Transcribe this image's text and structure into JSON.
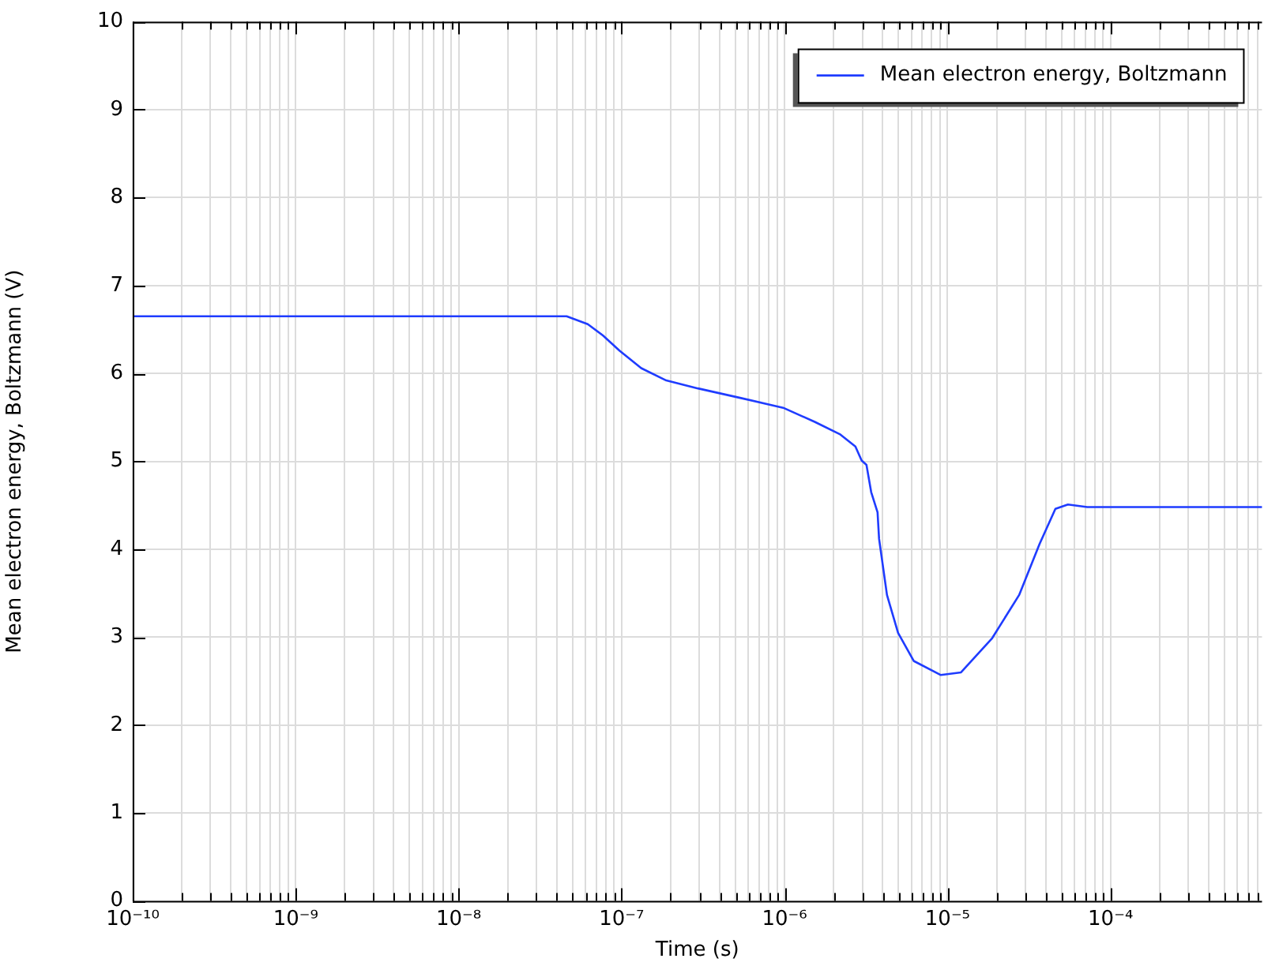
{
  "chart_data": {
    "type": "line",
    "xlabel": "Time (s)",
    "ylabel": "Mean electron energy, Boltzmann (V)",
    "log": "x",
    "grid": true,
    "legend": "top right",
    "marker": "none",
    "line_style": "solid",
    "xlim": [
      1e-10,
      0.00085
    ],
    "ylim": [
      0,
      10
    ],
    "xticks": [
      {
        "value": 1e-10,
        "label": "10⁻¹⁰"
      },
      {
        "value": 2e-10,
        "label": null
      },
      {
        "value": 3e-10,
        "label": null
      },
      {
        "value": 4e-10,
        "label": null
      },
      {
        "value": 5e-10,
        "label": null
      },
      {
        "value": 6e-10,
        "label": null
      },
      {
        "value": 7e-10,
        "label": null
      },
      {
        "value": 8e-10,
        "label": null
      },
      {
        "value": 9e-10,
        "label": null
      },
      {
        "value": 1e-09,
        "label": "10⁻⁹"
      },
      {
        "value": 2e-09,
        "label": null
      },
      {
        "value": 3e-09,
        "label": null
      },
      {
        "value": 4e-09,
        "label": null
      },
      {
        "value": 5e-09,
        "label": null
      },
      {
        "value": 6e-09,
        "label": null
      },
      {
        "value": 7e-09,
        "label": null
      },
      {
        "value": 8e-09,
        "label": null
      },
      {
        "value": 9e-09,
        "label": null
      },
      {
        "value": 1e-08,
        "label": "10⁻⁸"
      },
      {
        "value": 2e-08,
        "label": null
      },
      {
        "value": 3e-08,
        "label": null
      },
      {
        "value": 4e-08,
        "label": null
      },
      {
        "value": 5e-08,
        "label": null
      },
      {
        "value": 6e-08,
        "label": null
      },
      {
        "value": 7e-08,
        "label": null
      },
      {
        "value": 8e-08,
        "label": null
      },
      {
        "value": 9e-08,
        "label": null
      },
      {
        "value": 1e-07,
        "label": "10⁻⁷"
      },
      {
        "value": 2e-07,
        "label": null
      },
      {
        "value": 3e-07,
        "label": null
      },
      {
        "value": 4e-07,
        "label": null
      },
      {
        "value": 5e-07,
        "label": null
      },
      {
        "value": 6e-07,
        "label": null
      },
      {
        "value": 7e-07,
        "label": null
      },
      {
        "value": 8e-07,
        "label": null
      },
      {
        "value": 9e-07,
        "label": null
      },
      {
        "value": 1e-06,
        "label": "10⁻⁶"
      },
      {
        "value": 2e-06,
        "label": null
      },
      {
        "value": 3e-06,
        "label": null
      },
      {
        "value": 4e-06,
        "label": null
      },
      {
        "value": 5e-06,
        "label": null
      },
      {
        "value": 6e-06,
        "label": null
      },
      {
        "value": 7e-06,
        "label": null
      },
      {
        "value": 8e-06,
        "label": null
      },
      {
        "value": 9e-06,
        "label": null
      },
      {
        "value": 1e-05,
        "label": "10⁻⁵"
      },
      {
        "value": 2e-05,
        "label": null
      },
      {
        "value": 3e-05,
        "label": null
      },
      {
        "value": 4e-05,
        "label": null
      },
      {
        "value": 5e-05,
        "label": null
      },
      {
        "value": 6e-05,
        "label": null
      },
      {
        "value": 7e-05,
        "label": null
      },
      {
        "value": 8e-05,
        "label": null
      },
      {
        "value": 9e-05,
        "label": null
      },
      {
        "value": 0.0001,
        "label": "10⁻⁴"
      },
      {
        "value": 0.0002,
        "label": null
      },
      {
        "value": 0.0003,
        "label": null
      },
      {
        "value": 0.0004,
        "label": null
      },
      {
        "value": 0.0005,
        "label": null
      },
      {
        "value": 0.0006,
        "label": null
      },
      {
        "value": 0.0007,
        "label": null
      },
      {
        "value": 0.0008,
        "label": null
      }
    ],
    "yticks": [
      0,
      1,
      2,
      3,
      4,
      5,
      6,
      7,
      8,
      9,
      10
    ],
    "series": [
      {
        "name": "Mean electron energy, Boltzmann",
        "color": "#1f3cff",
        "x": [
          1e-10,
          4.6e-08,
          6.2e-08,
          7.7e-08,
          9.7e-08,
          1.32e-07,
          1.88e-07,
          2.94e-07,
          5.4e-07,
          9.8e-07,
          1.53e-06,
          2.18e-06,
          2.72e-06,
          2.97e-06,
          3.18e-06,
          3.4e-06,
          3.72e-06,
          3.8e-06,
          4.25e-06,
          4.97e-06,
          6.2e-06,
          9.1e-06,
          1.21e-05,
          1.88e-05,
          2.75e-05,
          3.67e-05,
          4.59e-05,
          5.48e-05,
          7.2e-05,
          0.00085
        ],
        "values": [
          6.65,
          6.65,
          6.56,
          6.43,
          6.26,
          6.06,
          5.92,
          5.83,
          5.72,
          5.61,
          5.45,
          5.31,
          5.17,
          5.01,
          4.96,
          4.65,
          4.42,
          4.12,
          3.48,
          3.05,
          2.73,
          2.57,
          2.6,
          2.99,
          3.48,
          4.06,
          4.46,
          4.51,
          4.48,
          4.48
        ]
      }
    ]
  }
}
